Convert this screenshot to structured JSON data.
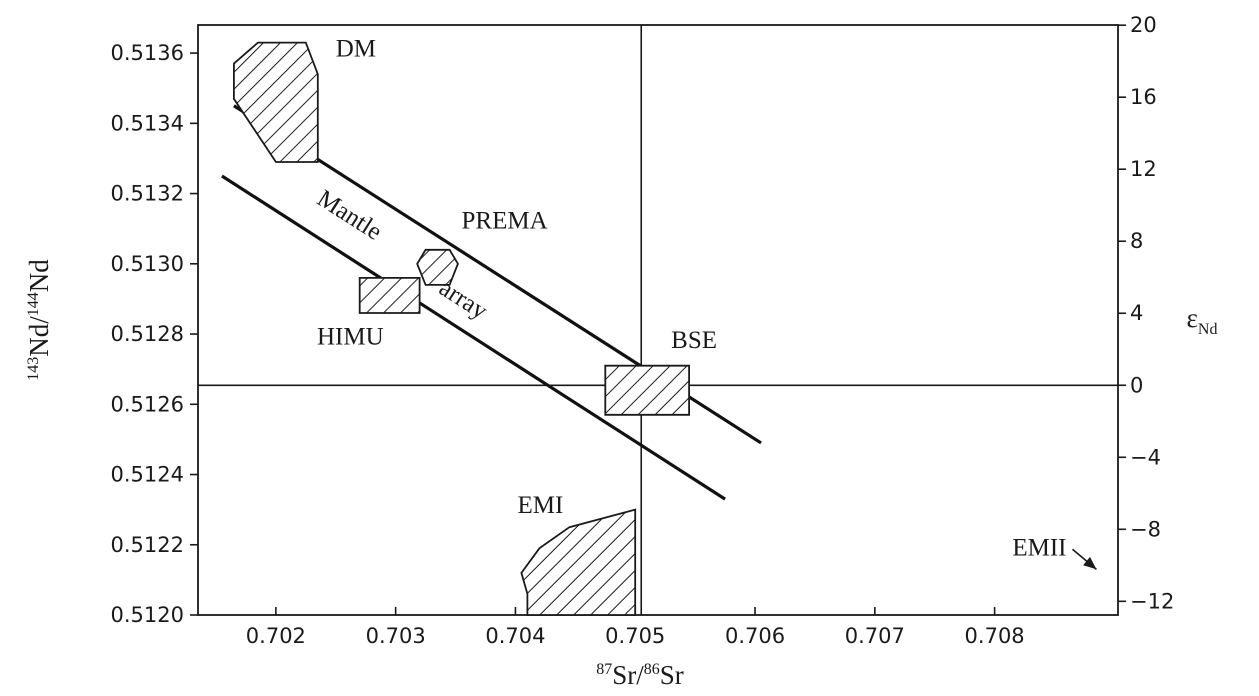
{
  "chart_data": {
    "type": "scatter",
    "xlabel": {
      "sup1": "87",
      "base1": "Sr/",
      "sup2": "86",
      "base2": "Sr"
    },
    "ylabel": {
      "sup1": "143",
      "base1": "Nd/",
      "sup2": "144",
      "base2": "Nd"
    },
    "y2label": {
      "base": "ε",
      "sub": "Nd"
    },
    "xlim": [
      0.70135,
      0.70903
    ],
    "ylim": [
      0.512,
      0.51368
    ],
    "y2lim": [
      -12.76,
      20.01
    ],
    "x_ticks": [
      0.702,
      0.703,
      0.704,
      0.705,
      0.706,
      0.707,
      0.708
    ],
    "x_tick_labels": [
      "0.702",
      "0.703",
      "0.704",
      "0.705",
      "0.706",
      "0.707",
      "0.708"
    ],
    "y_ticks": [
      0.512,
      0.5122,
      0.5124,
      0.5126,
      0.5128,
      0.513,
      0.5132,
      0.5134,
      0.5136
    ],
    "y_tick_labels": [
      "0.5120",
      "0.5122",
      "0.5124",
      "0.5126",
      "0.5128",
      "0.5130",
      "0.5132",
      "0.5134",
      "0.5136"
    ],
    "y2_ticks": [
      -12,
      -8,
      -4,
      0,
      4,
      8,
      12,
      16,
      20
    ],
    "y2_tick_labels": [
      "−12",
      "−8",
      "−4",
      "0",
      "4",
      "8",
      "12",
      "16",
      "20"
    ],
    "reference_lines": {
      "bse_sr": 0.70505,
      "bse_nd": 0.512654
    },
    "mantle_array": {
      "label_word1": "Mantle",
      "label_word2": "array",
      "upper_line": [
        [
          0.70165,
          0.51345
        ],
        [
          0.70605,
          0.51249
        ]
      ],
      "lower_line": [
        [
          0.70155,
          0.51325
        ],
        [
          0.70575,
          0.51233
        ]
      ]
    },
    "reservoirs": [
      {
        "name": "DM",
        "label": "DM",
        "polygon": [
          [
            0.70165,
            0.51357
          ],
          [
            0.70185,
            0.51363
          ],
          [
            0.70225,
            0.51363
          ],
          [
            0.70235,
            0.51354
          ],
          [
            0.70235,
            0.51329
          ],
          [
            0.702,
            0.51329
          ],
          [
            0.70165,
            0.51347
          ]
        ]
      },
      {
        "name": "PREMA",
        "label": "PREMA",
        "polygon": [
          [
            0.70325,
            0.51304
          ],
          [
            0.70345,
            0.51304
          ],
          [
            0.70352,
            0.513
          ],
          [
            0.70345,
            0.51294
          ],
          [
            0.70325,
            0.51294
          ],
          [
            0.70318,
            0.513
          ]
        ]
      },
      {
        "name": "HIMU",
        "label": "HIMU",
        "polygon": [
          [
            0.7027,
            0.51286
          ],
          [
            0.7032,
            0.51286
          ],
          [
            0.7032,
            0.51296
          ],
          [
            0.7027,
            0.51296
          ]
        ]
      },
      {
        "name": "BSE",
        "label": "BSE",
        "polygon": [
          [
            0.70475,
            0.51257
          ],
          [
            0.70545,
            0.51257
          ],
          [
            0.70545,
            0.51271
          ],
          [
            0.70475,
            0.51271
          ]
        ]
      },
      {
        "name": "EMI",
        "label": "EMI",
        "polygon": [
          [
            0.7041,
            0.512
          ],
          [
            0.705,
            0.512
          ],
          [
            0.705,
            0.5123
          ],
          [
            0.70445,
            0.51225
          ],
          [
            0.7042,
            0.51219
          ],
          [
            0.70405,
            0.51212
          ],
          [
            0.7041,
            0.51206
          ]
        ]
      },
      {
        "name": "EMII",
        "label": "EMII",
        "arrow_to": [
          0.70885,
          0.51213
        ]
      }
    ]
  }
}
